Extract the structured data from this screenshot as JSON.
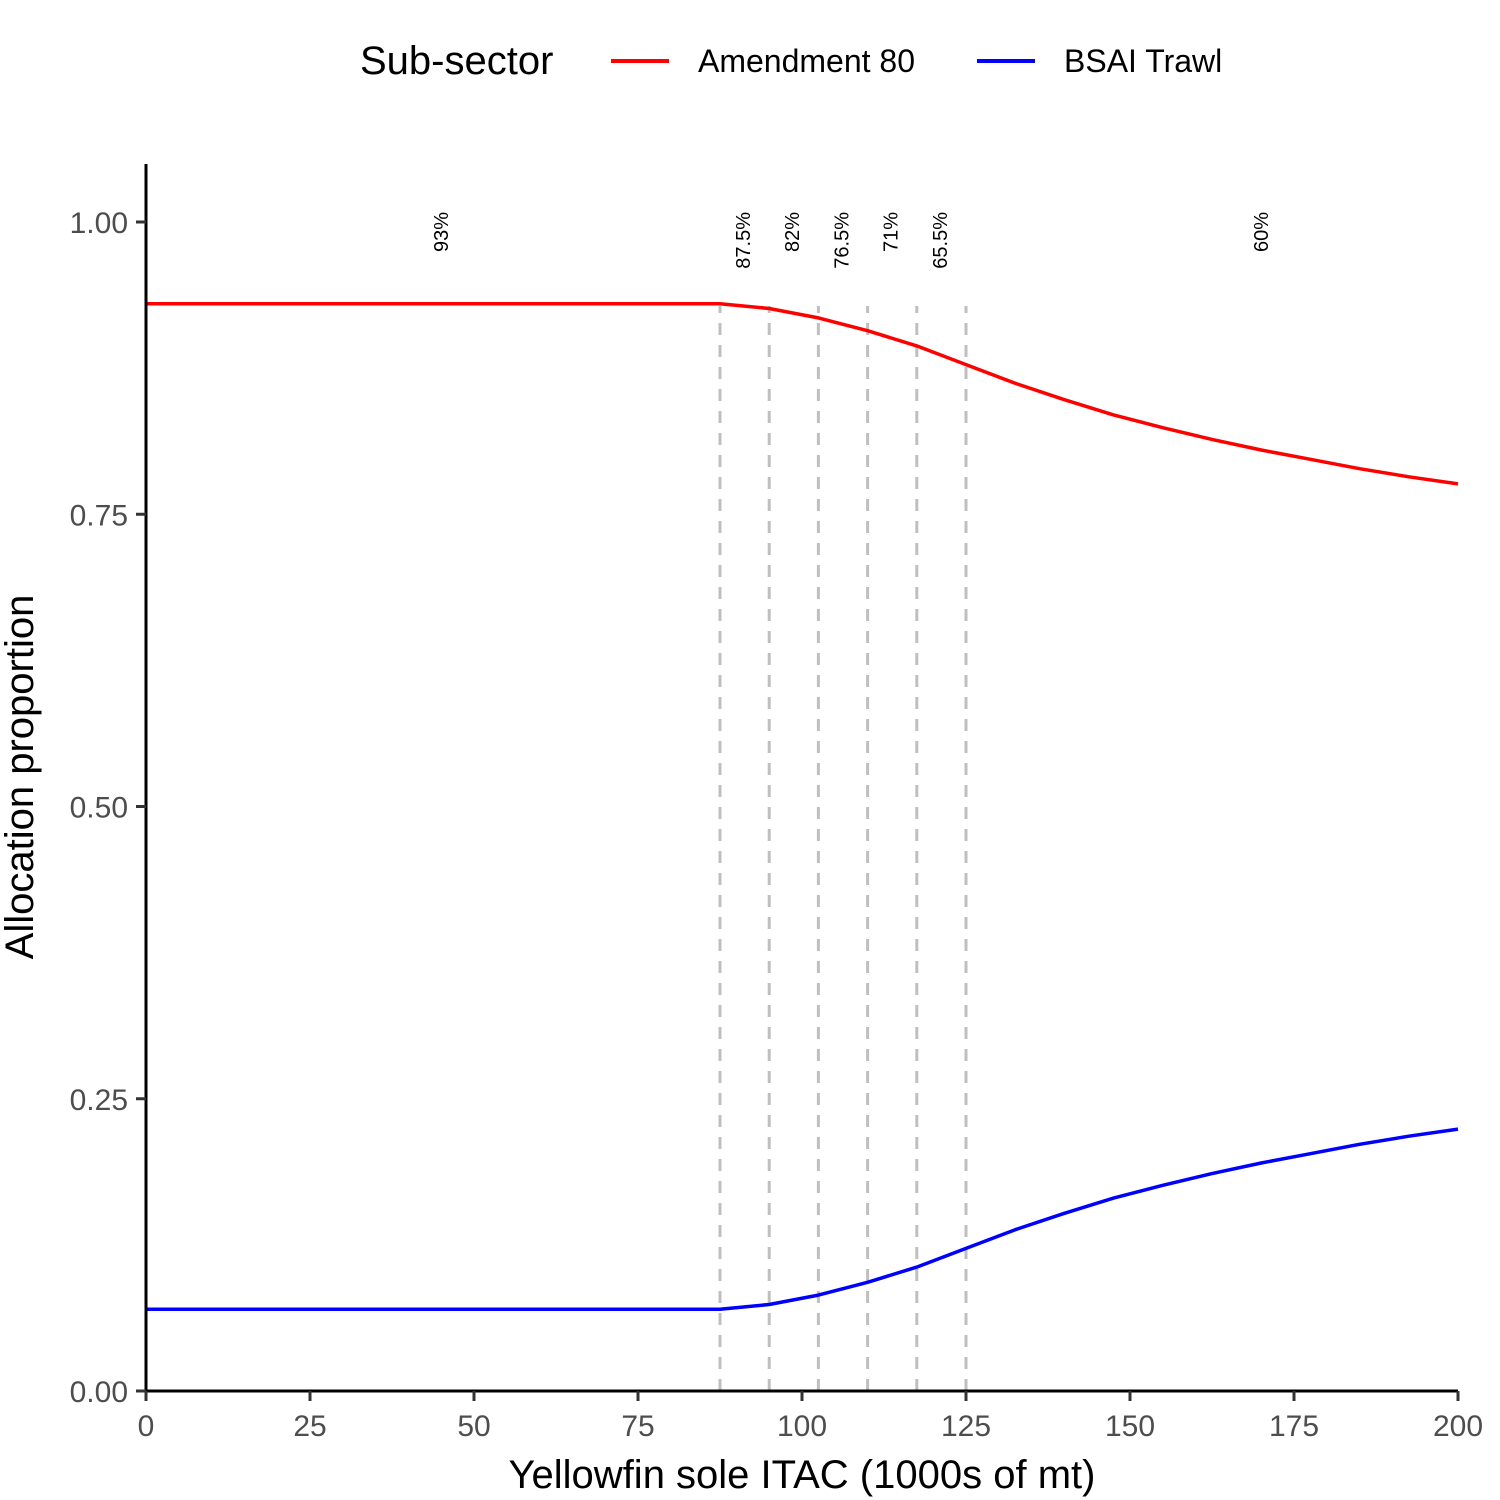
{
  "chart_data": {
    "type": "line",
    "title": "",
    "xlabel": "Yellowfin sole ITAC (1000s of mt)",
    "ylabel": "Allocation proportion",
    "xlim": [
      0,
      200
    ],
    "ylim": [
      0,
      1.05
    ],
    "xticks": [
      0,
      25,
      50,
      75,
      100,
      125,
      150,
      175,
      200
    ],
    "xtick_labels": [
      "0",
      "25",
      "50",
      "75",
      "100",
      "125",
      "150",
      "175",
      "200"
    ],
    "yticks": [
      0,
      0.25,
      0.5,
      0.75,
      1.0
    ],
    "ytick_labels": [
      "0.00",
      "0.25",
      "0.50",
      "0.75",
      "1.00"
    ],
    "grid": false,
    "legend": {
      "title": "Sub-sector",
      "position": "top"
    },
    "series": [
      {
        "name": "Amendment 80",
        "color": "#ff0000",
        "x": [
          0,
          87.5,
          95,
          102.5,
          110,
          117.5,
          125,
          132.5,
          140,
          147.5,
          155,
          162.5,
          170,
          177.5,
          185,
          192.5,
          200
        ],
        "y": [
          0.93,
          0.93,
          0.926,
          0.918,
          0.907,
          0.894,
          0.878,
          0.862,
          0.848,
          0.835,
          0.824,
          0.814,
          0.805,
          0.797,
          0.789,
          0.782,
          0.776
        ]
      },
      {
        "name": "BSAI Trawl",
        "color": "#0000ff",
        "x": [
          0,
          87.5,
          95,
          102.5,
          110,
          117.5,
          125,
          132.5,
          140,
          147.5,
          155,
          162.5,
          170,
          177.5,
          185,
          192.5,
          200
        ],
        "y": [
          0.07,
          0.07,
          0.074,
          0.082,
          0.093,
          0.106,
          0.122,
          0.138,
          0.152,
          0.165,
          0.176,
          0.186,
          0.195,
          0.203,
          0.211,
          0.218,
          0.224
        ]
      }
    ],
    "vlines": {
      "color": "#bfbfbf",
      "style": "dashed",
      "x": [
        87.5,
        95,
        102.5,
        110,
        117.5,
        125
      ]
    },
    "annotations": [
      {
        "text": "93%",
        "x": 45
      },
      {
        "text": "87.5%",
        "x": 91
      },
      {
        "text": "82%",
        "x": 98.5
      },
      {
        "text": "76.5%",
        "x": 106
      },
      {
        "text": "71%",
        "x": 113.5
      },
      {
        "text": "65.5%",
        "x": 121
      },
      {
        "text": "60%",
        "x": 170
      }
    ]
  }
}
